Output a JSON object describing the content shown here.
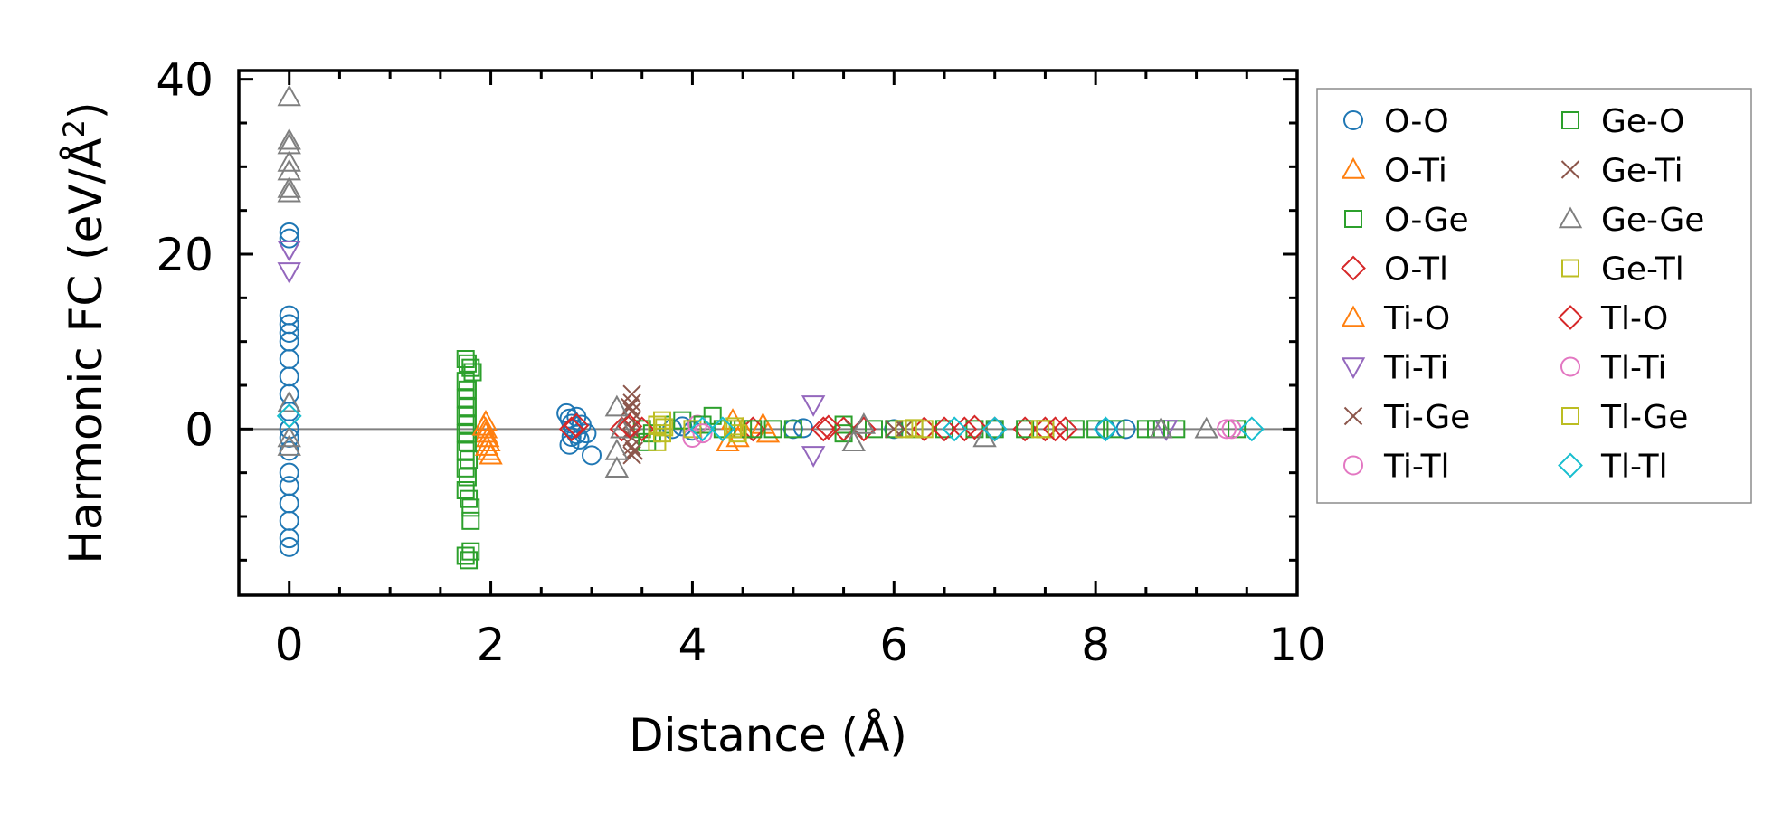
{
  "chart_data": {
    "type": "scatter",
    "title": "",
    "xlabel": "Distance (Å)",
    "ylabel_parts": {
      "prefix": "Harmonic FC (eV/Å",
      "superscript": "2",
      "suffix": ")"
    },
    "xlim": [
      -0.5,
      10
    ],
    "ylim": [
      -19,
      41
    ],
    "xticks": [
      0,
      2,
      4,
      6,
      8,
      10
    ],
    "xtick_labels": [
      "0",
      "2",
      "4",
      "6",
      "8",
      "10"
    ],
    "yticks": [
      0,
      20,
      40
    ],
    "ytick_labels": [
      "0",
      "20",
      "40"
    ],
    "x_minor_step": 0.5,
    "y_minor_step": 5,
    "zero_line": true,
    "legend_position": "outside-right",
    "legend_columns": 2,
    "series": [
      {
        "name": "O-O",
        "marker": "circle",
        "color": "#1f77b4",
        "points": [
          [
            0,
            22.5
          ],
          [
            0,
            21.8
          ],
          [
            0,
            13
          ],
          [
            0,
            12
          ],
          [
            0,
            11
          ],
          [
            0,
            10
          ],
          [
            0,
            8
          ],
          [
            0,
            6
          ],
          [
            0,
            4
          ],
          [
            0,
            2
          ],
          [
            0,
            0
          ],
          [
            0,
            -1
          ],
          [
            0,
            -2.5
          ],
          [
            0,
            -5
          ],
          [
            0,
            -6.5
          ],
          [
            0,
            -8.5
          ],
          [
            0,
            -10.5
          ],
          [
            0,
            -12.5
          ],
          [
            0,
            -13.5
          ],
          [
            2.75,
            1.8
          ],
          [
            2.78,
            1.2
          ],
          [
            2.8,
            0.6
          ],
          [
            2.82,
            0
          ],
          [
            2.85,
            -0.6
          ],
          [
            2.88,
            -1.2
          ],
          [
            2.78,
            -1.8
          ],
          [
            2.9,
            0.5
          ],
          [
            2.95,
            -0.5
          ],
          [
            3.0,
            -3
          ],
          [
            2.85,
            1.4
          ],
          [
            2.8,
            -0.9
          ],
          [
            3.8,
            0
          ],
          [
            3.9,
            0.3
          ],
          [
            4.0,
            -0.2
          ],
          [
            5.0,
            0
          ],
          [
            5.1,
            0.1
          ],
          [
            6.0,
            0
          ],
          [
            7.0,
            0
          ],
          [
            8.1,
            0
          ],
          [
            8.3,
            0
          ]
        ]
      },
      {
        "name": "O-Ti",
        "marker": "triangle-up",
        "color": "#ff7f0e",
        "points": [
          [
            1.95,
            0.8
          ],
          [
            1.95,
            -0.5
          ],
          [
            1.98,
            -1.5
          ],
          [
            1.98,
            -2.5
          ],
          [
            2.0,
            -3
          ],
          [
            1.95,
            0
          ],
          [
            1.97,
            -1
          ],
          [
            4.4,
            1
          ],
          [
            4.45,
            -1
          ],
          [
            4.5,
            0
          ],
          [
            4.7,
            0.5
          ],
          [
            4.75,
            -0.5
          ]
        ]
      },
      {
        "name": "O-Ge",
        "marker": "square",
        "color": "#2ca02c",
        "points": [
          [
            1.75,
            8
          ],
          [
            1.77,
            7.5
          ],
          [
            1.8,
            7
          ],
          [
            1.82,
            6.5
          ],
          [
            1.75,
            5.5
          ],
          [
            1.77,
            4.5
          ],
          [
            1.75,
            3.5
          ],
          [
            1.77,
            2.5
          ],
          [
            1.75,
            1.5
          ],
          [
            1.77,
            0.5
          ],
          [
            1.75,
            -0.5
          ],
          [
            1.77,
            -1.5
          ],
          [
            1.75,
            -2.5
          ],
          [
            1.78,
            -3.5
          ],
          [
            1.75,
            -4.5
          ],
          [
            1.77,
            -5.5
          ],
          [
            1.75,
            -7
          ],
          [
            1.78,
            -8
          ],
          [
            1.8,
            -9
          ],
          [
            1.8,
            -10.5
          ],
          [
            1.75,
            -14.5
          ],
          [
            1.78,
            -15
          ],
          [
            1.8,
            -14
          ],
          [
            3.5,
            0
          ],
          [
            3.6,
            -0.5
          ],
          [
            3.7,
            0.5
          ],
          [
            3.9,
            1
          ],
          [
            4.2,
            1.5
          ],
          [
            4.3,
            0
          ],
          [
            4.5,
            0
          ],
          [
            4.8,
            0
          ],
          [
            5.0,
            0
          ],
          [
            5.5,
            0.5
          ],
          [
            5.8,
            0
          ],
          [
            6.0,
            0
          ],
          [
            6.5,
            0
          ],
          [
            7.0,
            0
          ],
          [
            7.5,
            0
          ],
          [
            7.8,
            0
          ],
          [
            8.2,
            0
          ],
          [
            8.5,
            0
          ],
          [
            8.8,
            0
          ],
          [
            9.4,
            0
          ]
        ]
      },
      {
        "name": "O-Tl",
        "marker": "diamond",
        "color": "#d62728",
        "points": [
          [
            2.8,
            0
          ],
          [
            3.3,
            0
          ],
          [
            3.5,
            0
          ],
          [
            4.6,
            0
          ],
          [
            5.3,
            0
          ],
          [
            5.5,
            0
          ],
          [
            5.7,
            0
          ],
          [
            6.3,
            0
          ],
          [
            6.5,
            0
          ],
          [
            6.7,
            0
          ],
          [
            7.0,
            0
          ],
          [
            7.3,
            0
          ],
          [
            7.5,
            0
          ],
          [
            7.7,
            0
          ]
        ]
      },
      {
        "name": "Ti-O",
        "marker": "triangle-up",
        "color": "#ff7f0e",
        "points": [
          [
            1.93,
            0.3
          ],
          [
            1.96,
            -2
          ],
          [
            4.35,
            -1.5
          ]
        ]
      },
      {
        "name": "Ti-Ti",
        "marker": "triangle-down",
        "color": "#9467bd",
        "points": [
          [
            0,
            20.5
          ],
          [
            0,
            18
          ],
          [
            5.2,
            2.8
          ],
          [
            5.2,
            -3
          ],
          [
            8.7,
            0
          ]
        ]
      },
      {
        "name": "Ti-Ge",
        "marker": "x",
        "color": "#8c564b",
        "points": [
          [
            3.4,
            4
          ],
          [
            3.4,
            3
          ],
          [
            3.4,
            2
          ],
          [
            3.4,
            1
          ],
          [
            3.4,
            0
          ],
          [
            3.4,
            -1
          ],
          [
            3.4,
            -2
          ],
          [
            3.4,
            -3
          ],
          [
            5.6,
            0
          ],
          [
            6.1,
            0
          ]
        ]
      },
      {
        "name": "Ti-Tl",
        "marker": "circle",
        "color": "#e377c2",
        "points": [
          [
            4.0,
            -1
          ],
          [
            4.05,
            0.5
          ],
          [
            9.3,
            0
          ]
        ]
      },
      {
        "name": "Ge-O",
        "marker": "square",
        "color": "#2ca02c",
        "points": [
          [
            3.55,
            -1.5
          ],
          [
            4.1,
            0.5
          ],
          [
            4.6,
            0
          ],
          [
            5.5,
            -0.5
          ],
          [
            6.2,
            0
          ],
          [
            6.8,
            0
          ],
          [
            7.3,
            0
          ],
          [
            8.0,
            0
          ],
          [
            8.6,
            0
          ]
        ]
      },
      {
        "name": "Ge-Ti",
        "marker": "x",
        "color": "#8c564b",
        "points": [
          [
            3.38,
            2.5
          ],
          [
            3.42,
            -2.5
          ],
          [
            6.0,
            0
          ]
        ]
      },
      {
        "name": "Ge-Ge",
        "marker": "triangle-up",
        "color": "#7f7f7f",
        "points": [
          [
            0,
            38
          ],
          [
            0,
            33
          ],
          [
            0,
            32.5
          ],
          [
            0,
            30.5
          ],
          [
            0,
            29.5
          ],
          [
            0,
            27.5
          ],
          [
            0,
            27
          ],
          [
            0,
            3
          ],
          [
            0,
            -1
          ],
          [
            0,
            -2
          ],
          [
            3.25,
            2.5
          ],
          [
            3.25,
            -2.5
          ],
          [
            3.25,
            -4.5
          ],
          [
            3.3,
            0
          ],
          [
            5.6,
            -1.5
          ],
          [
            5.7,
            0.5
          ],
          [
            6.9,
            -1
          ],
          [
            8.65,
            0
          ],
          [
            9.1,
            0
          ]
        ]
      },
      {
        "name": "Ge-Tl",
        "marker": "square",
        "color": "#bcbd22",
        "points": [
          [
            3.65,
            0.5
          ],
          [
            3.7,
            -0.5
          ],
          [
            3.65,
            -1.5
          ],
          [
            3.7,
            1
          ],
          [
            4.0,
            0
          ],
          [
            4.4,
            0
          ],
          [
            4.45,
            -0.5
          ],
          [
            6.1,
            0
          ],
          [
            6.3,
            0
          ],
          [
            7.5,
            0
          ]
        ]
      },
      {
        "name": "Tl-O",
        "marker": "diamond",
        "color": "#d62728",
        "points": [
          [
            2.85,
            0.4
          ],
          [
            3.38,
            0.3
          ],
          [
            5.35,
            0.2
          ],
          [
            6.8,
            0.2
          ],
          [
            7.6,
            0
          ]
        ]
      },
      {
        "name": "Tl-Ti",
        "marker": "circle",
        "color": "#e377c2",
        "points": [
          [
            4.1,
            -0.5
          ],
          [
            9.35,
            0
          ]
        ]
      },
      {
        "name": "Tl-Ge",
        "marker": "square",
        "color": "#bcbd22",
        "points": [
          [
            3.72,
            0.2
          ],
          [
            4.42,
            0.3
          ],
          [
            6.2,
            0.1
          ],
          [
            7.45,
            0
          ]
        ]
      },
      {
        "name": "Tl-Tl",
        "marker": "diamond",
        "color": "#17becf",
        "points": [
          [
            0,
            1.5
          ],
          [
            4.1,
            0
          ],
          [
            4.3,
            0
          ],
          [
            6.6,
            0
          ],
          [
            7.0,
            0
          ],
          [
            8.1,
            0
          ],
          [
            9.55,
            0
          ]
        ]
      }
    ]
  }
}
